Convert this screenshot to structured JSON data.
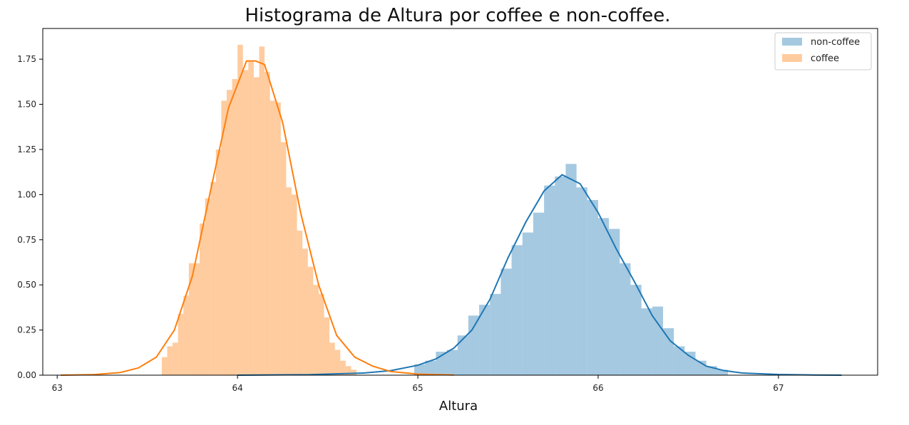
{
  "chart_data": {
    "type": "bar",
    "title": "Histograma de Altura por coffee e non-coffee.",
    "xlabel": "Altura",
    "ylabel": "",
    "xlim": [
      62.92,
      67.55
    ],
    "ylim": [
      0,
      1.92
    ],
    "xticks": [
      {
        "value": 63,
        "label": "63"
      },
      {
        "value": 64,
        "label": "64"
      },
      {
        "value": 65,
        "label": "65"
      },
      {
        "value": 66,
        "label": "66"
      },
      {
        "value": 67,
        "label": "67"
      }
    ],
    "yticks": [
      {
        "value": 0.0,
        "label": "0.00"
      },
      {
        "value": 0.25,
        "label": "0.25"
      },
      {
        "value": 0.5,
        "label": "0.50"
      },
      {
        "value": 0.75,
        "label": "0.75"
      },
      {
        "value": 1.0,
        "label": "1.00"
      },
      {
        "value": 1.25,
        "label": "1.25"
      },
      {
        "value": 1.5,
        "label": "1.50"
      },
      {
        "value": 1.75,
        "label": "1.75"
      }
    ],
    "grid": false,
    "legend_position": "top-right",
    "series": [
      {
        "name": "non-coffee",
        "color": "#1f77b4",
        "bar_opacity": 0.4,
        "bin_width": 0.06,
        "bins": [
          {
            "x": 64.98,
            "y": 0.06
          },
          {
            "x": 65.04,
            "y": 0.08
          },
          {
            "x": 65.1,
            "y": 0.13
          },
          {
            "x": 65.16,
            "y": 0.14
          },
          {
            "x": 65.22,
            "y": 0.22
          },
          {
            "x": 65.28,
            "y": 0.33
          },
          {
            "x": 65.34,
            "y": 0.39
          },
          {
            "x": 65.4,
            "y": 0.45
          },
          {
            "x": 65.46,
            "y": 0.59
          },
          {
            "x": 65.52,
            "y": 0.72
          },
          {
            "x": 65.58,
            "y": 0.79
          },
          {
            "x": 65.64,
            "y": 0.9
          },
          {
            "x": 65.7,
            "y": 1.05
          },
          {
            "x": 65.76,
            "y": 1.1
          },
          {
            "x": 65.82,
            "y": 1.17
          },
          {
            "x": 65.88,
            "y": 1.04
          },
          {
            "x": 65.94,
            "y": 0.97
          },
          {
            "x": 66.0,
            "y": 0.87
          },
          {
            "x": 66.06,
            "y": 0.81
          },
          {
            "x": 66.12,
            "y": 0.62
          },
          {
            "x": 66.18,
            "y": 0.5
          },
          {
            "x": 66.24,
            "y": 0.37
          },
          {
            "x": 66.3,
            "y": 0.38
          },
          {
            "x": 66.36,
            "y": 0.26
          },
          {
            "x": 66.42,
            "y": 0.16
          },
          {
            "x": 66.48,
            "y": 0.13
          },
          {
            "x": 66.54,
            "y": 0.08
          },
          {
            "x": 66.6,
            "y": 0.05
          },
          {
            "x": 66.66,
            "y": 0.03
          }
        ],
        "kde": [
          [
            64.0,
            0.0
          ],
          [
            64.4,
            0.003
          ],
          [
            64.7,
            0.012
          ],
          [
            64.85,
            0.025
          ],
          [
            65.0,
            0.055
          ],
          [
            65.1,
            0.09
          ],
          [
            65.2,
            0.15
          ],
          [
            65.3,
            0.25
          ],
          [
            65.4,
            0.42
          ],
          [
            65.5,
            0.65
          ],
          [
            65.6,
            0.85
          ],
          [
            65.7,
            1.02
          ],
          [
            65.8,
            1.11
          ],
          [
            65.9,
            1.06
          ],
          [
            66.0,
            0.9
          ],
          [
            66.1,
            0.7
          ],
          [
            66.2,
            0.52
          ],
          [
            66.3,
            0.33
          ],
          [
            66.4,
            0.19
          ],
          [
            66.5,
            0.11
          ],
          [
            66.6,
            0.05
          ],
          [
            66.7,
            0.025
          ],
          [
            66.8,
            0.012
          ],
          [
            67.0,
            0.004
          ],
          [
            67.2,
            0.001
          ],
          [
            67.35,
            0.0
          ]
        ]
      },
      {
        "name": "coffee",
        "color": "#ff7f0e",
        "bar_opacity": 0.4,
        "bin_width": 0.03,
        "bins": [
          {
            "x": 63.58,
            "y": 0.1
          },
          {
            "x": 63.61,
            "y": 0.16
          },
          {
            "x": 63.64,
            "y": 0.18
          },
          {
            "x": 63.67,
            "y": 0.34
          },
          {
            "x": 63.7,
            "y": 0.44
          },
          {
            "x": 63.73,
            "y": 0.62
          },
          {
            "x": 63.76,
            "y": 0.62
          },
          {
            "x": 63.79,
            "y": 0.84
          },
          {
            "x": 63.82,
            "y": 0.98
          },
          {
            "x": 63.85,
            "y": 1.07
          },
          {
            "x": 63.88,
            "y": 1.25
          },
          {
            "x": 63.91,
            "y": 1.52
          },
          {
            "x": 63.94,
            "y": 1.58
          },
          {
            "x": 63.97,
            "y": 1.64
          },
          {
            "x": 64.0,
            "y": 1.83
          },
          {
            "x": 64.03,
            "y": 1.69
          },
          {
            "x": 64.06,
            "y": 1.74
          },
          {
            "x": 64.09,
            "y": 1.65
          },
          {
            "x": 64.12,
            "y": 1.82
          },
          {
            "x": 64.15,
            "y": 1.68
          },
          {
            "x": 64.18,
            "y": 1.52
          },
          {
            "x": 64.21,
            "y": 1.51
          },
          {
            "x": 64.24,
            "y": 1.29
          },
          {
            "x": 64.27,
            "y": 1.04
          },
          {
            "x": 64.3,
            "y": 1.0
          },
          {
            "x": 64.33,
            "y": 0.8
          },
          {
            "x": 64.36,
            "y": 0.7
          },
          {
            "x": 64.39,
            "y": 0.6
          },
          {
            "x": 64.42,
            "y": 0.5
          },
          {
            "x": 64.45,
            "y": 0.45
          },
          {
            "x": 64.48,
            "y": 0.32
          },
          {
            "x": 64.51,
            "y": 0.18
          },
          {
            "x": 64.54,
            "y": 0.14
          },
          {
            "x": 64.57,
            "y": 0.08
          },
          {
            "x": 64.6,
            "y": 0.05
          },
          {
            "x": 64.63,
            "y": 0.03
          }
        ],
        "kde": [
          [
            63.02,
            0.0
          ],
          [
            63.2,
            0.003
          ],
          [
            63.35,
            0.015
          ],
          [
            63.45,
            0.04
          ],
          [
            63.55,
            0.1
          ],
          [
            63.65,
            0.25
          ],
          [
            63.75,
            0.55
          ],
          [
            63.85,
            1.02
          ],
          [
            63.95,
            1.48
          ],
          [
            64.05,
            1.74
          ],
          [
            64.1,
            1.74
          ],
          [
            64.15,
            1.72
          ],
          [
            64.25,
            1.4
          ],
          [
            64.35,
            0.9
          ],
          [
            64.45,
            0.5
          ],
          [
            64.55,
            0.22
          ],
          [
            64.65,
            0.1
          ],
          [
            64.75,
            0.05
          ],
          [
            64.85,
            0.02
          ],
          [
            65.0,
            0.006
          ],
          [
            65.2,
            0.001
          ]
        ]
      }
    ]
  }
}
